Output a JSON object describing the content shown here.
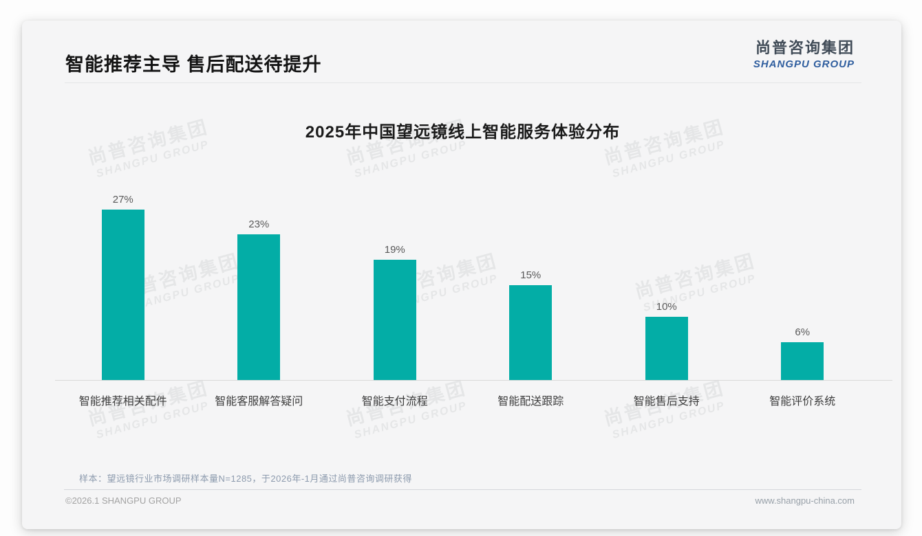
{
  "page": {
    "header": {
      "title": "智能推荐主导 售后配送待提升"
    },
    "logo": {
      "cn": "尚普咨询集团",
      "en": "SHANGPU GROUP"
    },
    "watermark": {
      "cn": "尚普咨询集团",
      "en": "SHANGPU GROUP"
    },
    "note": "样本：望远镜行业市场调研样本量N=1285，于2026年-1月通过尚普咨询调研获得",
    "footer": {
      "left": "©2026.1 SHANGPU GROUP",
      "right": "www.shangpu-china.com"
    }
  },
  "chart_data": {
    "type": "bar",
    "title": "2025年中国望远镜线上智能服务体验分布",
    "categories": [
      "智能推荐相关配件",
      "智能客服解答疑问",
      "智能支付流程",
      "智能配送跟踪",
      "智能售后支持",
      "智能评价系统"
    ],
    "values": [
      27,
      23,
      19,
      15,
      10,
      6
    ],
    "value_labels": [
      "27%",
      "23%",
      "19%",
      "15%",
      "10%",
      "6%"
    ],
    "unit": "%",
    "bar_color": "#03ada6",
    "ylim": [
      0,
      30
    ],
    "grid": false,
    "legend": null,
    "value_label_position": "above-bar"
  }
}
